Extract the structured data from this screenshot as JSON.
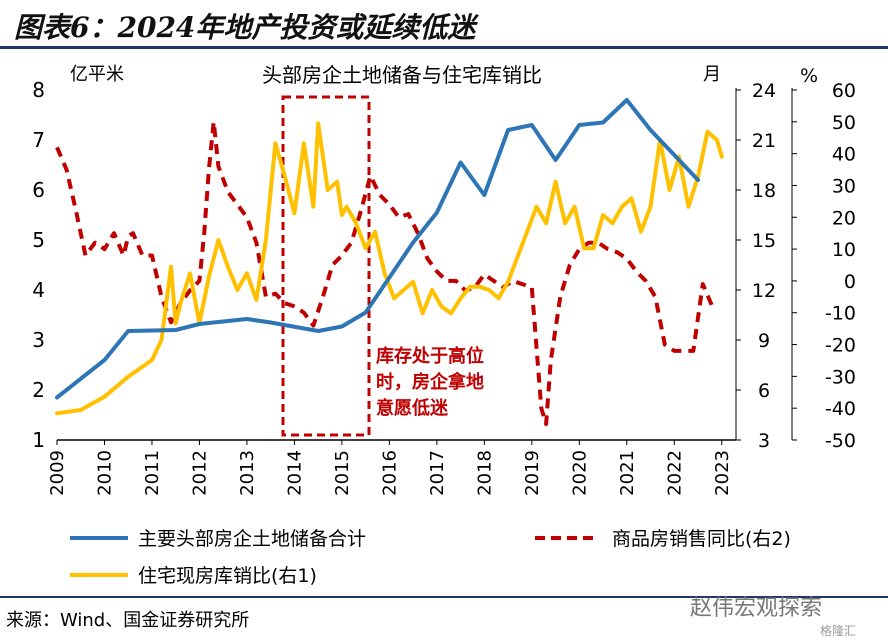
{
  "figure_title": "图表6：2024年地产投资或延续低迷",
  "source": "来源：Wind、国金证券研究所",
  "watermark": "赵伟宏观探索",
  "watermark_small": "格隆汇",
  "colors": {
    "land_reserve": "#2e75b6",
    "sales_yoy": "#c00000",
    "inventory_ratio": "#ffc000",
    "annotation": "#c00000"
  },
  "chart_data": {
    "type": "line",
    "title": "头部房企土地储备与住宅库销比",
    "left_axis": {
      "label": "亿平米",
      "range": [
        1,
        8
      ],
      "ticks": [
        "1",
        "2",
        "3",
        "4",
        "5",
        "6",
        "7",
        "8"
      ]
    },
    "right_axis_1": {
      "label": "月",
      "range": [
        3,
        24
      ],
      "ticks": [
        "3",
        "6",
        "9",
        "12",
        "15",
        "18",
        "21",
        "24"
      ]
    },
    "right_axis_2": {
      "label": "%",
      "range": [
        -50,
        60
      ],
      "ticks": [
        "-50",
        "-40",
        "-30",
        "-20",
        "-10",
        "0",
        "10",
        "20",
        "30",
        "40",
        "50",
        "60"
      ]
    },
    "x_ticks": [
      "2009",
      "2010",
      "2011",
      "2012",
      "2013",
      "2014",
      "2015",
      "2016",
      "2017",
      "2018",
      "2019",
      "2020",
      "2021",
      "2022",
      "2023"
    ],
    "annotation": {
      "lines": [
        "库存处于高位",
        "时，房企拿地",
        "意愿低迷"
      ]
    },
    "grid": false,
    "legend_placement": "bottom",
    "series": [
      {
        "name": "主要头部房企土地储备合计",
        "axis": "left",
        "style": "solid",
        "x": [
          2009.0,
          2010.0,
          2010.5,
          2011.5,
          2012.0,
          2013.0,
          2013.5,
          2014.5,
          2015.0,
          2015.5,
          2016.0,
          2016.5,
          2017.0,
          2017.5,
          2018.0,
          2018.5,
          2019.0,
          2019.5,
          2020.0,
          2020.5,
          2021.0,
          2021.5,
          2022.0,
          2022.5
        ],
        "values": [
          1.85,
          2.6,
          3.18,
          3.2,
          3.32,
          3.42,
          3.35,
          3.18,
          3.27,
          3.55,
          4.25,
          4.95,
          5.55,
          6.55,
          5.9,
          7.2,
          7.3,
          6.6,
          7.3,
          7.35,
          7.8,
          7.2,
          6.7,
          6.2
        ]
      },
      {
        "name": "商品房销售同比(右2)",
        "axis": "right2",
        "style": "dashed",
        "x": [
          2009.0,
          2009.2,
          2009.4,
          2009.6,
          2009.8,
          2010.0,
          2010.2,
          2010.4,
          2010.5,
          2010.6,
          2010.8,
          2011.0,
          2011.2,
          2011.4,
          2011.6,
          2011.8,
          2012.0,
          2012.1,
          2012.2,
          2012.3,
          2012.4,
          2012.6,
          2012.8,
          2013.0,
          2013.2,
          2013.4,
          2013.6,
          2013.8,
          2014.0,
          2014.2,
          2014.4,
          2014.6,
          2014.8,
          2015.0,
          2015.2,
          2015.4,
          2015.6,
          2015.8,
          2016.0,
          2016.2,
          2016.4,
          2016.6,
          2016.8,
          2017.0,
          2017.2,
          2017.4,
          2017.6,
          2017.8,
          2018.0,
          2018.2,
          2018.4,
          2018.6,
          2018.8,
          2019.0,
          2019.2,
          2019.3,
          2019.4,
          2019.6,
          2019.8,
          2020.0,
          2020.2,
          2020.4,
          2020.6,
          2020.8,
          2021.0,
          2021.2,
          2021.4,
          2021.6,
          2021.8,
          2022.0,
          2022.2,
          2022.4,
          2022.6,
          2022.8
        ],
        "values": [
          42,
          35,
          22,
          8,
          12,
          10,
          15,
          8,
          14,
          15,
          8,
          8,
          -5,
          -13,
          -7,
          -3,
          0,
          15,
          35,
          50,
          36,
          28,
          24,
          20,
          12,
          -5,
          -4,
          -7,
          -8,
          -10,
          -14,
          -5,
          5,
          8,
          12,
          22,
          33,
          27,
          24,
          20,
          21,
          15,
          7,
          3,
          0,
          0,
          -3,
          -2,
          2,
          0,
          -2,
          0,
          -1,
          -2,
          -40,
          -45,
          -25,
          -5,
          5,
          10,
          12,
          12,
          10,
          9,
          7,
          3,
          0,
          -5,
          -20,
          -22,
          -22,
          -22,
          -1,
          -8
        ]
      },
      {
        "name": "住宅现房库销比(右1)",
        "axis": "right1",
        "style": "solid",
        "x": [
          2009.0,
          2009.5,
          2010.0,
          2010.5,
          2011.0,
          2011.2,
          2011.4,
          2011.5,
          2011.6,
          2011.8,
          2012.0,
          2012.2,
          2012.4,
          2012.6,
          2012.8,
          2013.0,
          2013.2,
          2013.4,
          2013.6,
          2013.8,
          2014.0,
          2014.2,
          2014.4,
          2014.5,
          2014.7,
          2014.9,
          2015.0,
          2015.1,
          2015.3,
          2015.5,
          2015.7,
          2015.9,
          2016.1,
          2016.3,
          2016.5,
          2016.7,
          2016.9,
          2017.1,
          2017.3,
          2017.5,
          2017.7,
          2017.9,
          2018.1,
          2018.3,
          2018.5,
          2018.7,
          2018.9,
          2019.1,
          2019.3,
          2019.5,
          2019.7,
          2019.9,
          2020.1,
          2020.3,
          2020.5,
          2020.7,
          2020.9,
          2021.1,
          2021.3,
          2021.5,
          2021.7,
          2021.9,
          2022.1,
          2022.3,
          2022.5,
          2022.7,
          2022.9,
          2023.0
        ],
        "values": [
          4.6,
          4.8,
          5.6,
          6.8,
          7.8,
          9.0,
          13.4,
          10.0,
          11.2,
          13.0,
          10.0,
          12.8,
          15.0,
          13.4,
          12.0,
          13.0,
          11.4,
          15.0,
          20.8,
          18.8,
          16.6,
          20.8,
          17.0,
          22.0,
          18.0,
          18.5,
          16.5,
          17.0,
          16.0,
          14.5,
          15.5,
          13.0,
          11.5,
          12.0,
          12.5,
          10.6,
          12.0,
          11.0,
          10.6,
          11.5,
          12.2,
          12.2,
          12.0,
          11.5,
          12.5,
          14.0,
          15.5,
          17.0,
          16.0,
          18.5,
          16.0,
          17.0,
          14.5,
          14.5,
          16.5,
          16.0,
          17.0,
          17.5,
          15.5,
          17.0,
          21.0,
          18.0,
          20.0,
          17.0,
          18.8,
          21.5,
          21.0,
          20.0
        ]
      }
    ]
  }
}
